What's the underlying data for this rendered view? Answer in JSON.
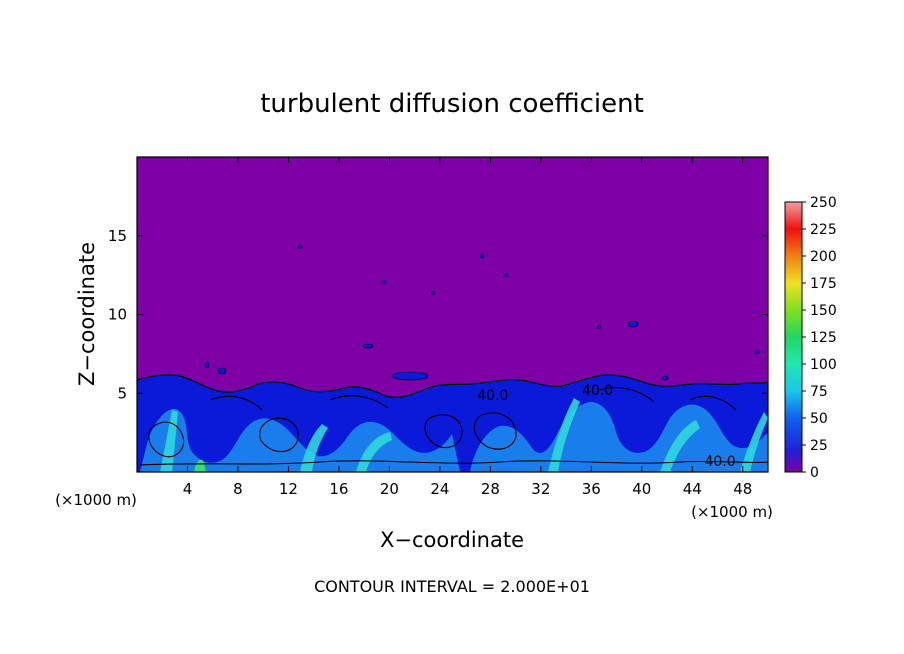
{
  "chart_data": {
    "type": "heatmap",
    "title": "turbulent diffusion coefficient",
    "xlabel": "X−coordinate",
    "ylabel": "Z−coordinate",
    "x_unit": "(×1000 m)",
    "y_unit": "(×1000 m)",
    "xlim": [
      0,
      50
    ],
    "ylim": [
      0,
      20
    ],
    "x_ticks": [
      4,
      8,
      12,
      16,
      20,
      24,
      28,
      32,
      36,
      40,
      44,
      48
    ],
    "y_ticks": [
      5,
      10,
      15
    ],
    "colorbar": {
      "min": 0,
      "max": 250,
      "ticks": [
        0,
        25,
        50,
        75,
        100,
        125,
        150,
        175,
        200,
        225,
        250
      ]
    },
    "contour_labels": [
      {
        "x": 28.2,
        "z": 4.9,
        "text": "40.0"
      },
      {
        "x": 36.5,
        "z": 5.2,
        "text": "40.0"
      },
      {
        "x": 46.2,
        "z": 0.7,
        "text": "40.0"
      }
    ],
    "footnote": "CONTOUR INTERVAL = 2.000E+01",
    "grid": false,
    "colors": {
      "background_field": "#7d00a6",
      "low": "#0a1ad8",
      "mid": "#1d8ff0",
      "high": "#2fd8dc",
      "peak": "#30e070",
      "contour": "#000000"
    }
  }
}
